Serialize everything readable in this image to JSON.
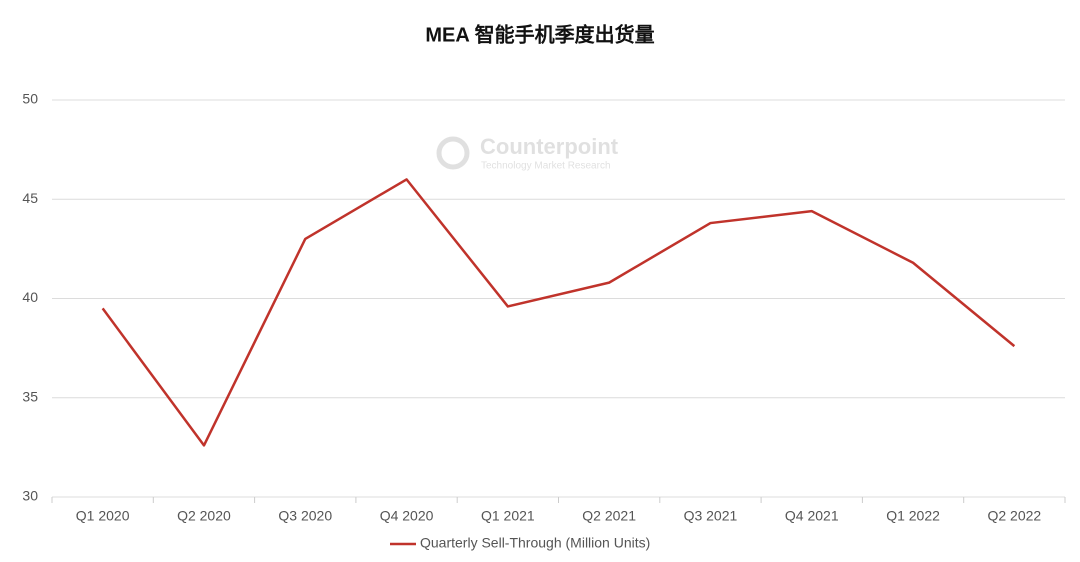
{
  "chart_data": {
    "type": "line",
    "title": "MEA 智能手机季度出货量",
    "watermark": {
      "brand": "Counterpoint",
      "tagline": "Technology Market Research"
    },
    "categories": [
      "Q1 2020",
      "Q2 2020",
      "Q3 2020",
      "Q4 2020",
      "Q1 2021",
      "Q2 2021",
      "Q3 2021",
      "Q4 2021",
      "Q1 2022",
      "Q2 2022"
    ],
    "series": [
      {
        "name": "Quarterly Sell-Through (Million Units)",
        "color": "#c0332b",
        "values": [
          39.5,
          32.6,
          43.0,
          46.0,
          39.6,
          40.8,
          43.8,
          44.4,
          41.8,
          37.6
        ]
      }
    ],
    "ylim": [
      30,
      50
    ],
    "yticks": [
      30,
      35,
      40,
      45,
      50
    ],
    "grid": true,
    "legend": "bottom"
  }
}
